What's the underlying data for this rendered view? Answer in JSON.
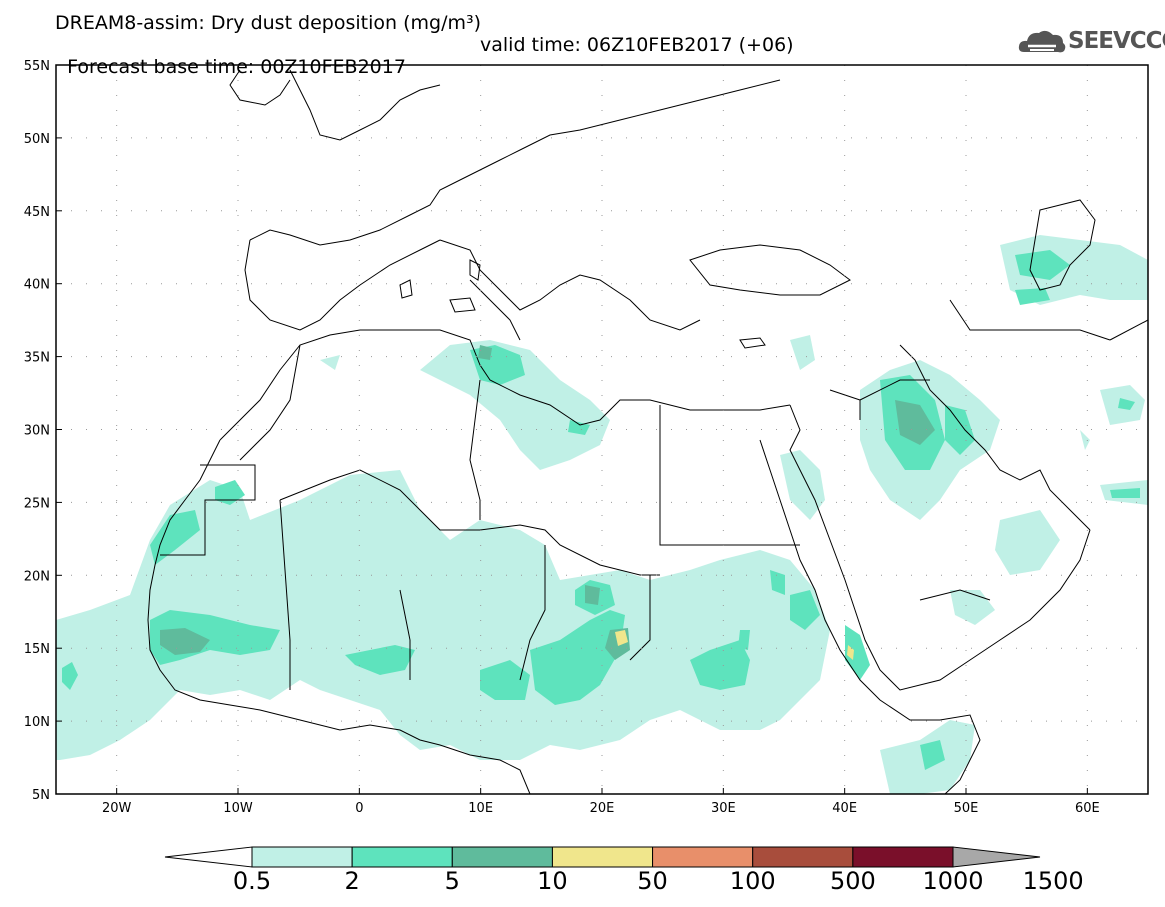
{
  "header": {
    "title_line1": "DREAM8-assim: Dry dust deposition (mg/m³)",
    "base_time": "Forecast base time: 00Z10FEB2017",
    "valid_time": "valid time: 06Z10FEB2017 (+06)"
  },
  "logo": {
    "text": "SEEVCCC",
    "icon": "cloud-icon"
  },
  "map": {
    "lat_range": [
      5,
      55
    ],
    "lon_range": [
      -25,
      65
    ],
    "lat_ticks": [
      {
        "value": 55,
        "label": "55N"
      },
      {
        "value": 50,
        "label": "50N"
      },
      {
        "value": 45,
        "label": "45N"
      },
      {
        "value": 40,
        "label": "40N"
      },
      {
        "value": 35,
        "label": "35N"
      },
      {
        "value": 30,
        "label": "30N"
      },
      {
        "value": 25,
        "label": "25N"
      },
      {
        "value": 20,
        "label": "20N"
      },
      {
        "value": 15,
        "label": "15N"
      },
      {
        "value": 10,
        "label": "10N"
      },
      {
        "value": 5,
        "label": "5N"
      }
    ],
    "lon_ticks": [
      {
        "value": -20,
        "label": "20W"
      },
      {
        "value": -10,
        "label": "10W"
      },
      {
        "value": 0,
        "label": "0"
      },
      {
        "value": 10,
        "label": "10E"
      },
      {
        "value": 20,
        "label": "20E"
      },
      {
        "value": 30,
        "label": "30E"
      },
      {
        "value": 40,
        "label": "40E"
      },
      {
        "value": 50,
        "label": "50E"
      },
      {
        "value": 60,
        "label": "60E"
      }
    ],
    "grid": "dotted"
  },
  "colorbar": {
    "colors": [
      "#c0f0e6",
      "#5ee3bd",
      "#5fbb9c",
      "#f0e68c",
      "#e88f6a",
      "#a84d3c",
      "#7a0f2a",
      "#8f6b9c",
      "#a8a8a8"
    ],
    "labels": [
      "0.5",
      "2",
      "5",
      "10",
      "50",
      "100",
      "500",
      "1000",
      "1500"
    ]
  }
}
